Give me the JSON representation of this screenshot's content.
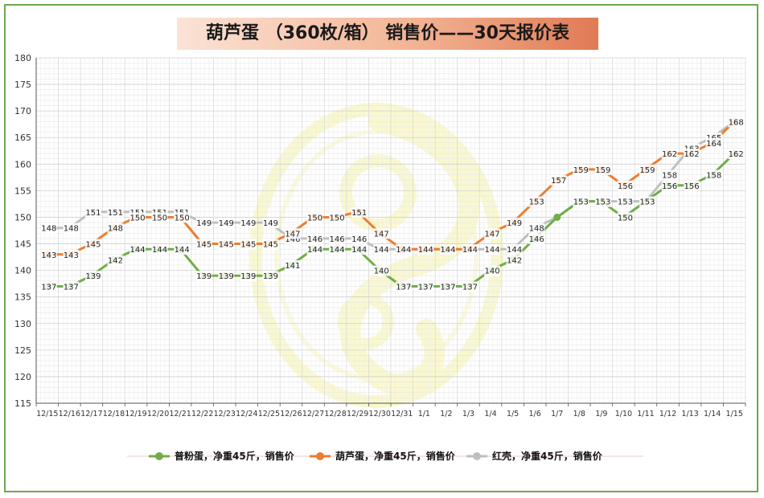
{
  "chart_data": {
    "type": "line",
    "title": "葫芦蛋 （360枚/箱） 销售价——30天报价表",
    "xlabel": "",
    "ylabel": "",
    "ylim": [
      115,
      180
    ],
    "ytick_step": 5,
    "grid": true,
    "legend_position": "bottom",
    "x": [
      "12/15",
      "12/16",
      "12/17",
      "12/18",
      "12/19",
      "12/20",
      "12/21",
      "12/22",
      "12/23",
      "12/24",
      "12/25",
      "12/26",
      "12/27",
      "12/28",
      "12/29",
      "12/30",
      "12/31",
      "1/1",
      "1/2",
      "1/3",
      "1/4",
      "1/5",
      "1/6",
      "1/7",
      "1/8",
      "1/9",
      "1/10",
      "1/11",
      "1/12",
      "1/13",
      "1/14",
      "1/15"
    ],
    "series": [
      {
        "name": "普粉蛋，净重45斤，销售价",
        "color": "#70ad47",
        "values": [
          137,
          137,
          139,
          142,
          144,
          144,
          144,
          139,
          139,
          139,
          139,
          141,
          144,
          144,
          144,
          140,
          137,
          137,
          137,
          137,
          140,
          142,
          146,
          150,
          153,
          153,
          150,
          153,
          156,
          156,
          158,
          162
        ],
        "labels": [
          "137",
          "137",
          "139",
          "142",
          "144",
          "144",
          "144",
          "139",
          "139",
          "139",
          "139",
          "141",
          "144",
          "144",
          "144",
          "140",
          "137",
          "137",
          "137",
          "137",
          "140",
          "142",
          "146",
          "",
          "",
          "",
          "150",
          "",
          "156",
          "156",
          "158",
          "162"
        ]
      },
      {
        "name": "葫芦蛋，净重45斤，销售价",
        "color": "#ed7d31",
        "values": [
          143,
          143,
          145,
          148,
          150,
          150,
          150,
          145,
          145,
          145,
          145,
          147,
          150,
          150,
          151,
          147,
          144,
          144,
          144,
          144,
          147,
          149,
          153,
          157,
          159,
          159,
          156,
          159,
          162,
          162,
          164,
          168
        ],
        "labels": [
          "143",
          "143",
          "145",
          "148",
          "150",
          "150",
          "150",
          "145",
          "145",
          "145",
          "145",
          "147",
          "150",
          "150",
          "151",
          "147",
          "",
          "",
          "",
          "",
          "147",
          "149",
          "153",
          "157",
          "159",
          "159",
          "156",
          "159",
          "162",
          "162",
          "164",
          ""
        ]
      },
      {
        "name": "红壳，净重45斤，销售价",
        "color": "#bfbfbf",
        "values": [
          148,
          148,
          151,
          151,
          151,
          151,
          151,
          149,
          149,
          149,
          149,
          146,
          146,
          146,
          146,
          144,
          144,
          144,
          144,
          144,
          144,
          144,
          148,
          150,
          153,
          153,
          153,
          153,
          158,
          163,
          165,
          168
        ],
        "labels": [
          "148",
          "148",
          "151",
          "151",
          "151",
          "151",
          "151",
          "149",
          "149",
          "149",
          "149",
          "146",
          "146",
          "146",
          "146",
          "144",
          "144",
          "144",
          "144",
          "144",
          "144",
          "144",
          "148",
          "",
          "153",
          "153",
          "153",
          "153",
          "158",
          "163",
          "165",
          "168"
        ]
      }
    ]
  }
}
